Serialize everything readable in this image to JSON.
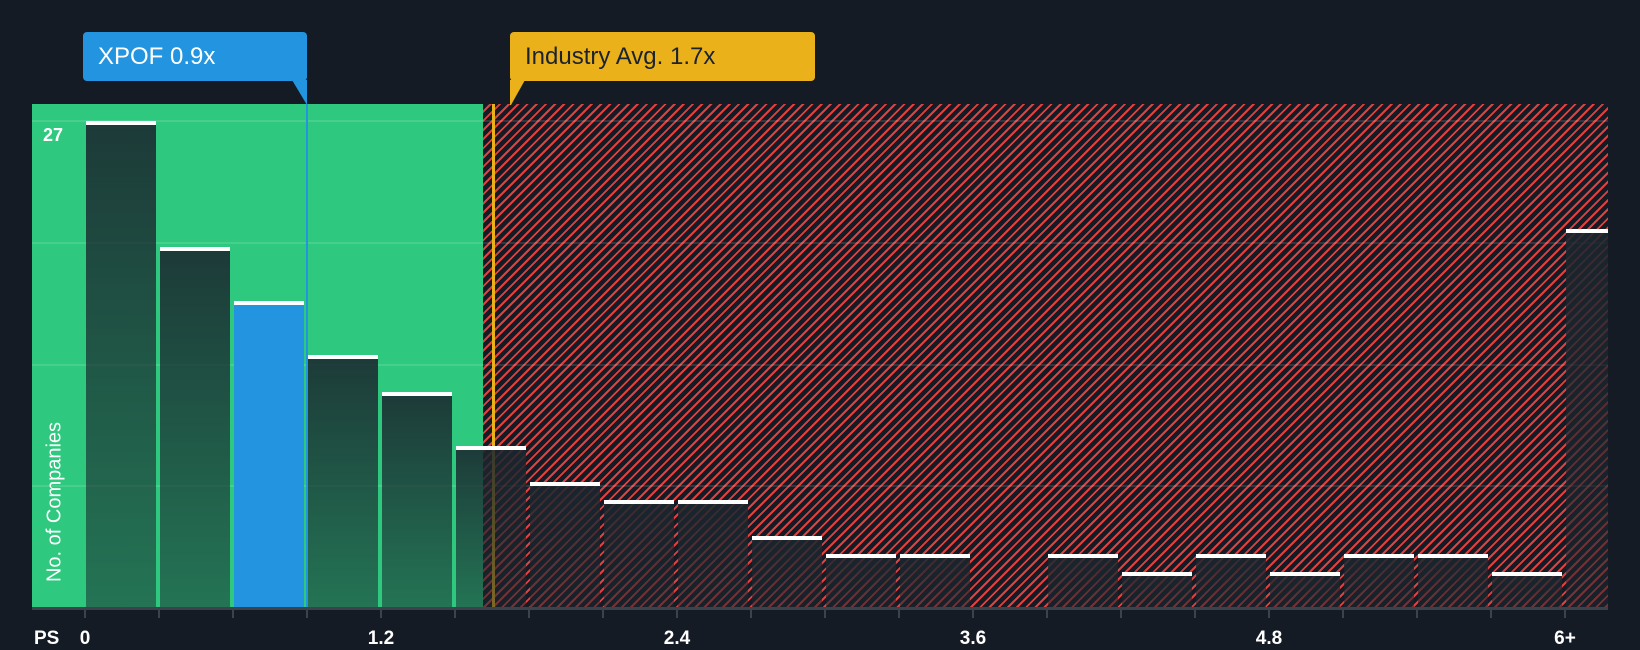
{
  "chart_data": {
    "type": "bar",
    "title": "",
    "xlabel": "PS",
    "ylabel": "No. of Companies",
    "ylim": [
      0,
      27
    ],
    "y_tick_labels": [
      "27"
    ],
    "x_tick_labels": [
      "0",
      "1.2",
      "2.4",
      "3.6",
      "4.8",
      "6+"
    ],
    "bin_width": 0.3,
    "categories": [
      "0-0.3",
      "0.3-0.6",
      "0.6-0.9",
      "0.9-1.2",
      "1.2-1.5",
      "1.5-1.8",
      "1.8-2.1",
      "2.1-2.4",
      "2.4-2.7",
      "2.7-3.0",
      "3.0-3.3",
      "3.3-3.6",
      "3.6-3.9",
      "3.9-4.2",
      "4.2-4.5",
      "4.5-4.8",
      "4.8-5.1",
      "5.1-5.4",
      "5.4-5.7",
      "5.7-6.0",
      "6+"
    ],
    "values": [
      27,
      20,
      17,
      14,
      12,
      9,
      7,
      6,
      6,
      4,
      3,
      3,
      0,
      3,
      2,
      3,
      2,
      3,
      3,
      2,
      21
    ],
    "highlight_index": 2,
    "grid": true,
    "annotations": [
      {
        "label": "XPOF 0.9x",
        "value": 0.9,
        "color": "#2394df"
      },
      {
        "label": "Industry Avg. 1.7x",
        "value": 1.7,
        "color": "#ebb11b"
      }
    ],
    "zones": [
      {
        "name": "below-average",
        "from": 0,
        "to": 1.7,
        "color": "#2ec97f"
      },
      {
        "name": "above-average",
        "from": 1.7,
        "to": "6+",
        "color": "#e2403f",
        "pattern": "hatched"
      }
    ]
  },
  "labels": {
    "company_callout": "XPOF 0.9x",
    "industry_callout": "Industry Avg. 1.7x",
    "x_axis_prefix": "PS",
    "y_axis_title": "No. of Companies",
    "y_max_tick": "27"
  },
  "colors": {
    "background": "#151b24",
    "company": "#2394df",
    "industry": "#ebb11b",
    "good_zone": "#2ec97f",
    "bad_zone_stripe": "#e2403f"
  }
}
